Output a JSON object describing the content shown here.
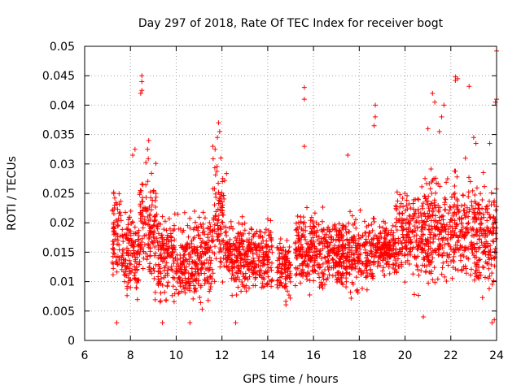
{
  "chart_data": {
    "type": "scatter",
    "title": "Day 297 of 2018, Rate Of TEC Index for receiver bogt",
    "xlabel": "GPS time / hours",
    "ylabel": "ROTI / TECUs",
    "xlim": [
      6,
      24
    ],
    "ylim": [
      0,
      0.05
    ],
    "xticks": [
      "6",
      "8",
      "10",
      "12",
      "14",
      "16",
      "18",
      "20",
      "22",
      "24"
    ],
    "yticks": [
      "0",
      "0.005",
      "0.01",
      "0.015",
      "0.02",
      "0.025",
      "0.03",
      "0.035",
      "0.04",
      "0.045",
      "0.05"
    ],
    "grid": true,
    "marker": "+",
    "color": "#ff0000",
    "clusters": [
      {
        "x": [
          7.2,
          7.6
        ],
        "y": [
          0.006,
          0.027
        ]
      },
      {
        "x": [
          7.6,
          8.4
        ],
        "y": [
          0.004,
          0.022
        ]
      },
      {
        "x": [
          8.4,
          9.2
        ],
        "y": [
          0.005,
          0.03
        ]
      },
      {
        "x": [
          9.2,
          10.4
        ],
        "y": [
          0.004,
          0.021
        ]
      },
      {
        "x": [
          10.4,
          11.6
        ],
        "y": [
          0.004,
          0.022
        ]
      },
      {
        "x": [
          11.6,
          12.2
        ],
        "y": [
          0.006,
          0.03
        ]
      },
      {
        "x": [
          12.2,
          14.2
        ],
        "y": [
          0.006,
          0.02
        ]
      },
      {
        "x": [
          14.4,
          15.0
        ],
        "y": [
          0.005,
          0.018
        ]
      },
      {
        "x": [
          15.2,
          16.6
        ],
        "y": [
          0.006,
          0.022
        ]
      },
      {
        "x": [
          16.6,
          18.6
        ],
        "y": [
          0.006,
          0.021
        ]
      },
      {
        "x": [
          18.6,
          19.6
        ],
        "y": [
          0.01,
          0.02
        ]
      },
      {
        "x": [
          19.6,
          21.0
        ],
        "y": [
          0.007,
          0.026
        ]
      },
      {
        "x": [
          21.0,
          22.4
        ],
        "y": [
          0.006,
          0.028
        ]
      },
      {
        "x": [
          22.4,
          24.0
        ],
        "y": [
          0.005,
          0.028
        ]
      }
    ],
    "outliers": [
      {
        "x": 8.5,
        "y": 0.045
      },
      {
        "x": 8.5,
        "y": 0.044
      },
      {
        "x": 8.5,
        "y": 0.0425
      },
      {
        "x": 8.45,
        "y": 0.042
      },
      {
        "x": 8.2,
        "y": 0.0325
      },
      {
        "x": 8.1,
        "y": 0.0315
      },
      {
        "x": 8.8,
        "y": 0.034
      },
      {
        "x": 8.75,
        "y": 0.0325
      },
      {
        "x": 11.85,
        "y": 0.037
      },
      {
        "x": 11.9,
        "y": 0.0355
      },
      {
        "x": 11.8,
        "y": 0.0345
      },
      {
        "x": 11.95,
        "y": 0.031
      },
      {
        "x": 11.6,
        "y": 0.033
      },
      {
        "x": 11.7,
        "y": 0.0325
      },
      {
        "x": 15.6,
        "y": 0.043
      },
      {
        "x": 15.6,
        "y": 0.041
      },
      {
        "x": 15.6,
        "y": 0.033
      },
      {
        "x": 17.5,
        "y": 0.0315
      },
      {
        "x": 18.7,
        "y": 0.04
      },
      {
        "x": 18.7,
        "y": 0.038
      },
      {
        "x": 18.65,
        "y": 0.0365
      },
      {
        "x": 21.2,
        "y": 0.042
      },
      {
        "x": 21.3,
        "y": 0.0405
      },
      {
        "x": 21.0,
        "y": 0.036
      },
      {
        "x": 21.7,
        "y": 0.04
      },
      {
        "x": 21.6,
        "y": 0.038
      },
      {
        "x": 21.5,
        "y": 0.0355
      },
      {
        "x": 22.2,
        "y": 0.0448
      },
      {
        "x": 22.2,
        "y": 0.0442
      },
      {
        "x": 22.3,
        "y": 0.0445
      },
      {
        "x": 22.8,
        "y": 0.0432
      },
      {
        "x": 23.0,
        "y": 0.0345
      },
      {
        "x": 23.1,
        "y": 0.0335
      },
      {
        "x": 23.7,
        "y": 0.0335
      },
      {
        "x": 24.0,
        "y": 0.0492
      },
      {
        "x": 24.0,
        "y": 0.041
      },
      {
        "x": 23.95,
        "y": 0.0405
      },
      {
        "x": 7.4,
        "y": 0.003
      },
      {
        "x": 9.4,
        "y": 0.003
      },
      {
        "x": 10.6,
        "y": 0.003
      },
      {
        "x": 12.6,
        "y": 0.003
      },
      {
        "x": 20.8,
        "y": 0.004
      },
      {
        "x": 23.8,
        "y": 0.003
      },
      {
        "x": 23.9,
        "y": 0.0035
      }
    ]
  }
}
